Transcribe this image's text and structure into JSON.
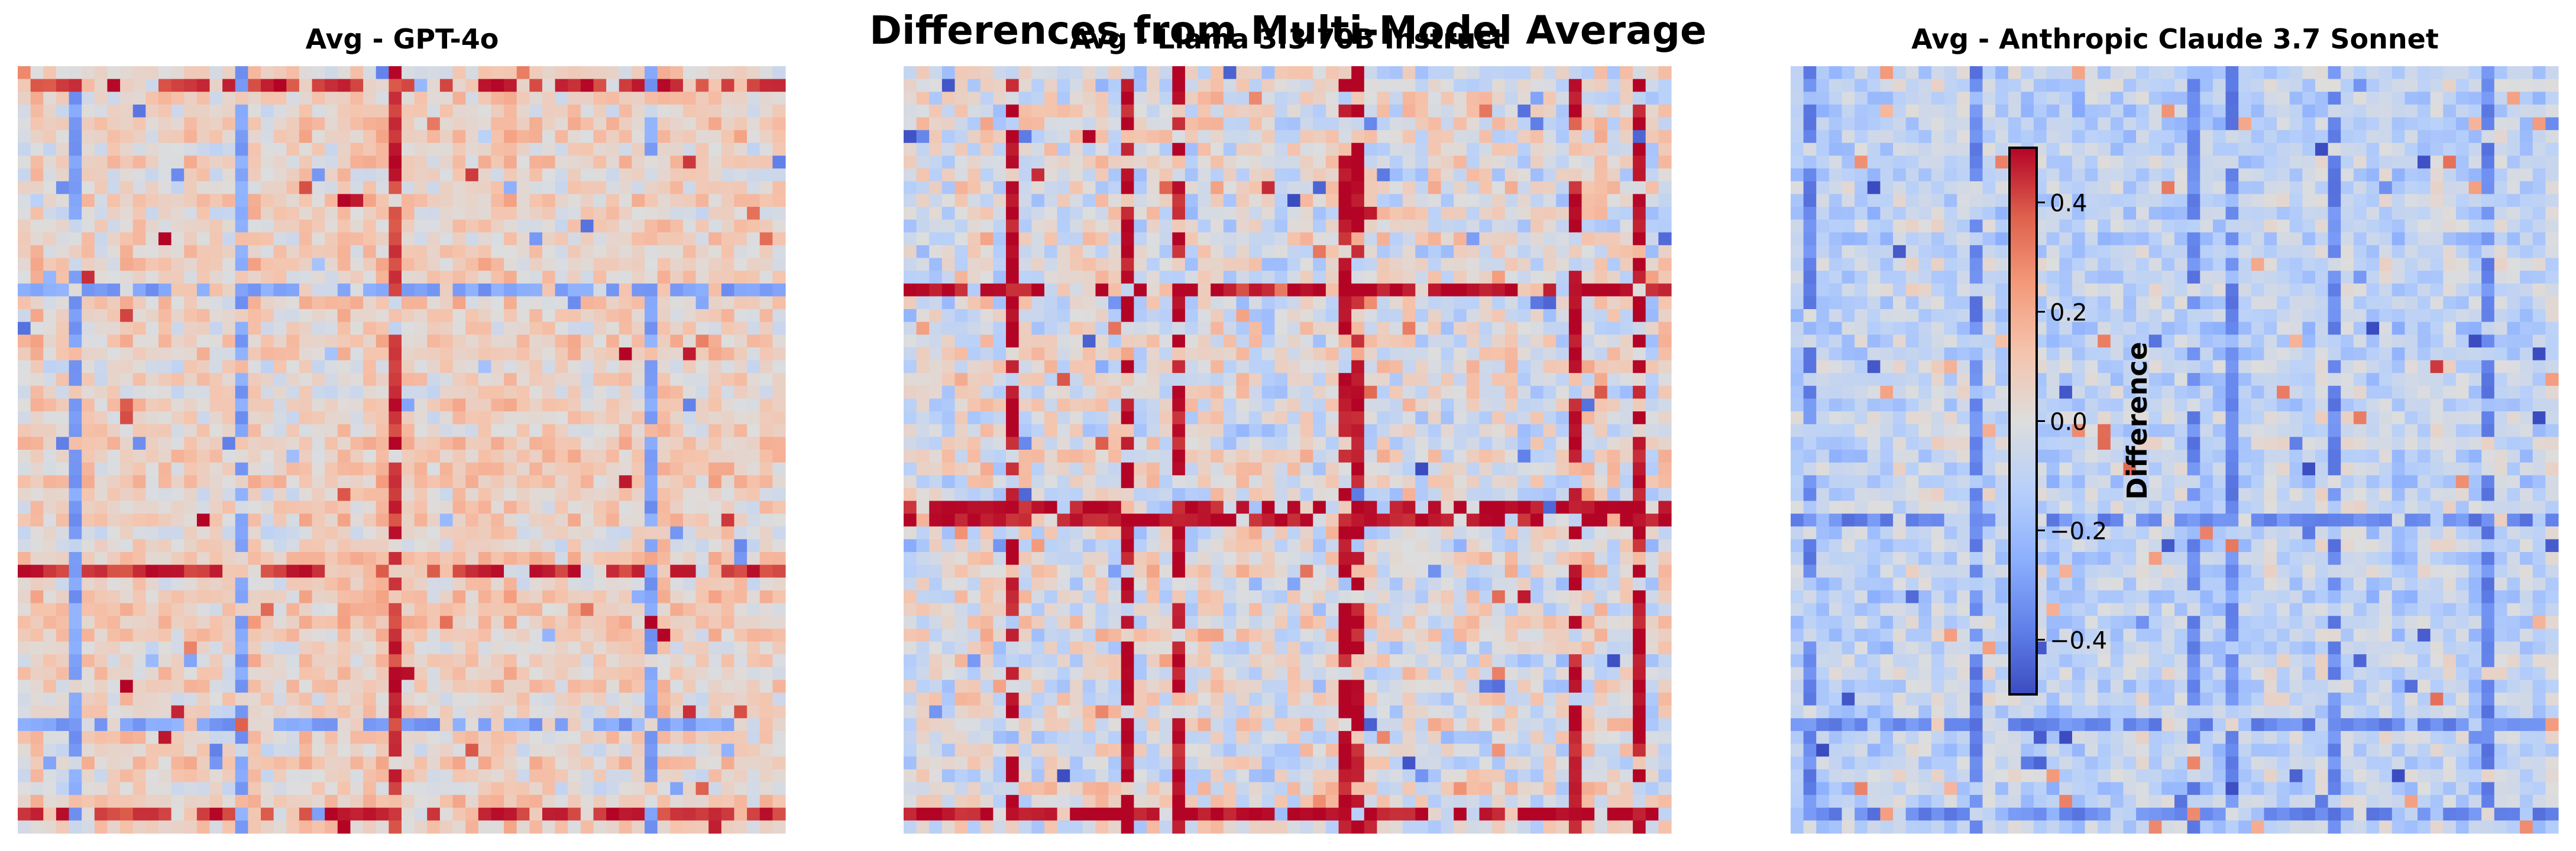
{
  "suptitle": "Differences from Multi-Model Average",
  "chart_data": {
    "type": "heatmap",
    "panels": [
      {
        "title": "Avg - GPT-4o",
        "rows": 60,
        "cols": 60,
        "seed": 11,
        "bias": 0.07,
        "spread": 0.11,
        "hot_rows": [
          1,
          39,
          58
        ],
        "cold_rows": [
          17,
          51
        ],
        "cold_cols": [
          4,
          17,
          49
        ],
        "hot_cols": [
          29
        ],
        "hot_value": 0.5,
        "cold_value": -0.35
      },
      {
        "title": "Avg - Llama 3.3 70B Instruct",
        "rows": 60,
        "cols": 60,
        "seed": 23,
        "bias": 0.0,
        "spread": 0.16,
        "hot_rows": [
          17,
          34,
          35,
          58
        ],
        "cold_rows": [],
        "hot_cols": [
          8,
          17,
          21,
          34,
          35,
          52,
          57
        ],
        "cold_cols": [],
        "hot_value": 0.55,
        "cold_value": -0.35
      },
      {
        "title": "Avg - Anthropic Claude 3.7 Sonnet",
        "rows": 60,
        "cols": 60,
        "seed": 37,
        "bias": -0.09,
        "spread": 0.11,
        "hot_rows": [],
        "cold_rows": [
          35,
          51,
          58
        ],
        "hot_cols": [],
        "cold_cols": [
          1,
          14,
          31,
          34,
          42,
          54
        ],
        "hot_value": 0.45,
        "cold_value": -0.42
      }
    ],
    "colormap": "coolwarm",
    "vmin": -0.5,
    "vmax": 0.5,
    "colorbar": {
      "label": "Difference",
      "ticks": [
        -0.4,
        -0.2,
        0.0,
        0.2,
        0.4
      ],
      "tick_labels": [
        "−0.4",
        "−0.2",
        "0.0",
        "0.2",
        "0.4"
      ]
    }
  }
}
